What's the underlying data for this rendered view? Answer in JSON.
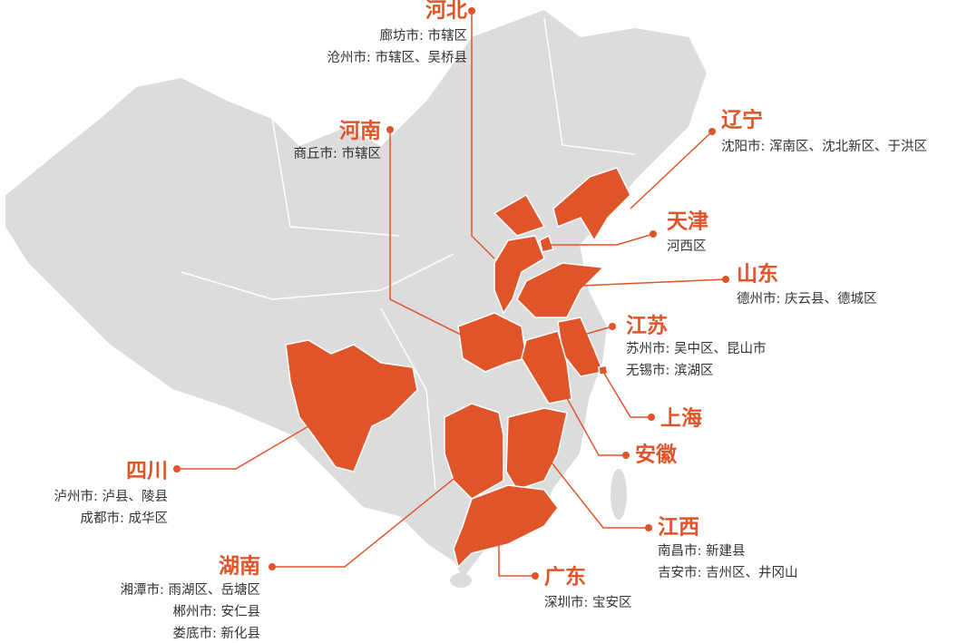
{
  "regions": [
    {
      "name": "河北",
      "details": [
        "廊坊市: 市辖区",
        "沧州市: 市辖区、吴桥县"
      ]
    },
    {
      "name": "河南",
      "details": [
        "商丘市: 市辖区"
      ]
    },
    {
      "name": "辽宁",
      "details": [
        "沈阳市: 浑南区、沈北新区、于洪区"
      ]
    },
    {
      "name": "天津",
      "details": [
        "河西区"
      ]
    },
    {
      "name": "山东",
      "details": [
        "德州市: 庆云县、德城区"
      ]
    },
    {
      "name": "江苏",
      "details": [
        "苏州市: 吴中区、昆山市",
        "无锡市: 滨湖区"
      ]
    },
    {
      "name": "上海"
    },
    {
      "name": "安徽"
    },
    {
      "name": "四川",
      "details": [
        "泸州市: 泸县、陵县",
        "成都市: 成华区"
      ]
    },
    {
      "name": "湖南",
      "details": [
        "湘潭市: 雨湖区、岳塘区",
        "郴州市: 安仁县",
        "娄底市: 新化县"
      ]
    },
    {
      "name": "江西",
      "details": [
        "南昌市: 新建县",
        "吉安市: 吉州区、井冈山"
      ]
    },
    {
      "name": "广东",
      "details": [
        "深圳市: 宝安区"
      ]
    }
  ]
}
